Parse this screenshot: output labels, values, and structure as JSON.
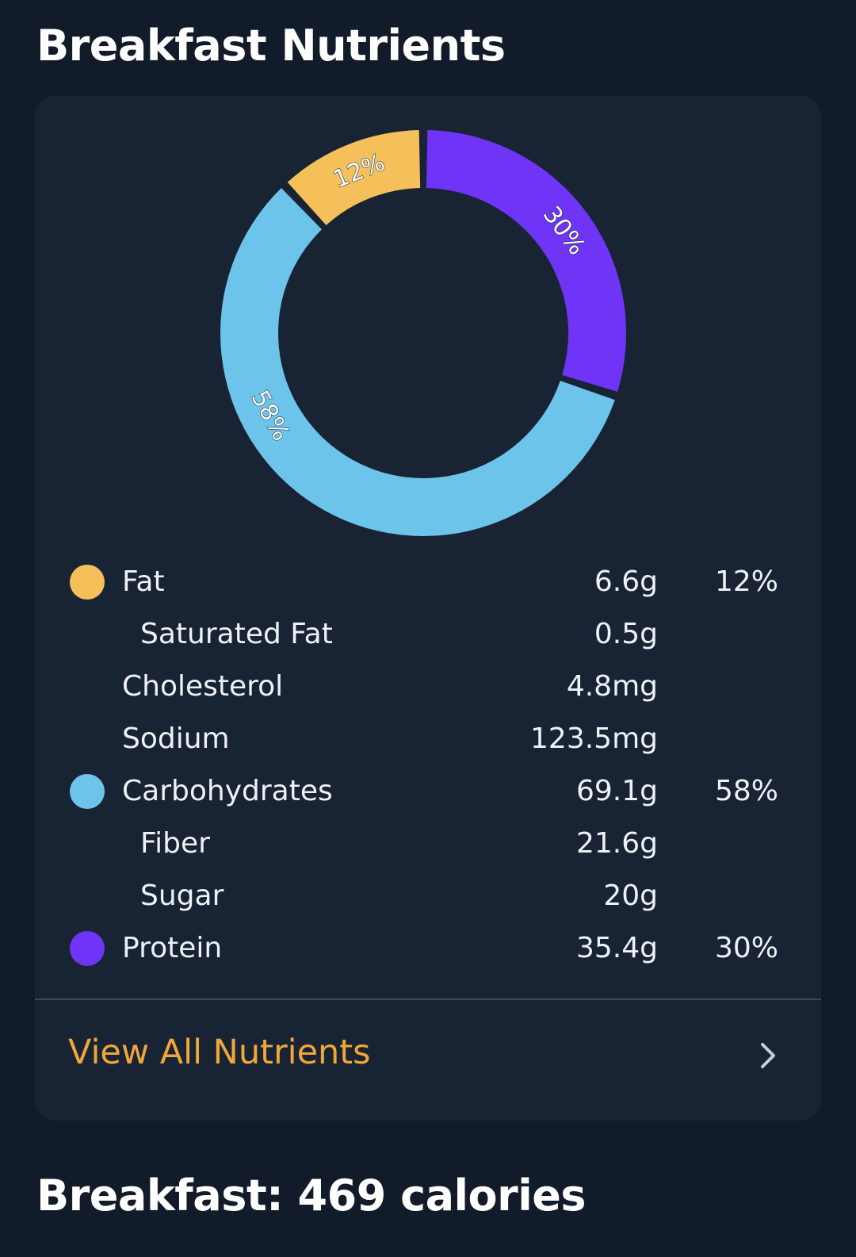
{
  "header": {
    "title": "Breakfast Nutrients"
  },
  "chart_data": {
    "type": "pie",
    "categories": [
      "Protein",
      "Carbohydrates",
      "Fat"
    ],
    "values": [
      30,
      58,
      12
    ],
    "labels": [
      "30%",
      "58%",
      "12%"
    ],
    "colors": [
      "#6f34f5",
      "#6cc4ea",
      "#f5c05a"
    ]
  },
  "nutrients": [
    {
      "name": "Fat",
      "amount": "6.6g",
      "percent": "12%",
      "dot_color": "#f5c05a",
      "indent": false
    },
    {
      "name": "Saturated Fat",
      "amount": "0.5g",
      "percent": "",
      "dot_color": "",
      "indent": true
    },
    {
      "name": "Cholesterol",
      "amount": "4.8mg",
      "percent": "",
      "dot_color": "",
      "indent": false
    },
    {
      "name": "Sodium",
      "amount": "123.5mg",
      "percent": "",
      "dot_color": "",
      "indent": false
    },
    {
      "name": "Carbohydrates",
      "amount": "69.1g",
      "percent": "58%",
      "dot_color": "#6cc4ea",
      "indent": false
    },
    {
      "name": "Fiber",
      "amount": "21.6g",
      "percent": "",
      "dot_color": "",
      "indent": true
    },
    {
      "name": "Sugar",
      "amount": "20g",
      "percent": "",
      "dot_color": "",
      "indent": true
    },
    {
      "name": "Protein",
      "amount": "35.4g",
      "percent": "30%",
      "dot_color": "#6f34f5",
      "indent": false
    }
  ],
  "view_all": {
    "label": "View All Nutrients",
    "icon": "chevron-right-icon"
  },
  "footer": {
    "title": "Breakfast: 469 calories"
  }
}
